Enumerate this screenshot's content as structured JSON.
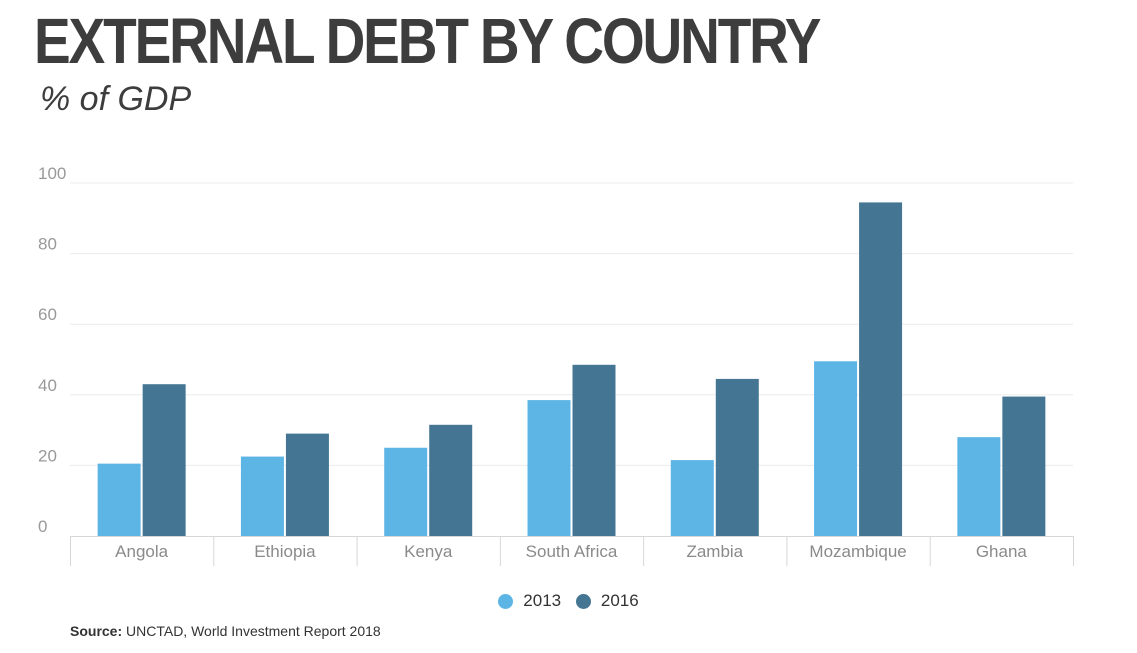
{
  "header": {
    "title": "EXTERNAL DEBT BY COUNTRY",
    "subtitle": "% of GDP"
  },
  "colors": {
    "series_2013": "#5db5e5",
    "series_2016": "#447694",
    "gridline": "#ececec",
    "baseline": "#d6d6d6"
  },
  "chart_data": {
    "type": "bar",
    "categories": [
      "Angola",
      "Ethiopia",
      "Kenya",
      "South Africa",
      "Zambia",
      "Mozambique",
      "Ghana"
    ],
    "series": [
      {
        "name": "2013",
        "values": [
          20.5,
          22.5,
          25,
          38.5,
          21.5,
          49.5,
          28
        ]
      },
      {
        "name": "2016",
        "values": [
          43,
          29,
          31.5,
          48.5,
          44.5,
          94.5,
          39.5
        ]
      }
    ],
    "ylim": [
      0,
      100
    ],
    "yticks": [
      0,
      20,
      40,
      60,
      80,
      100
    ],
    "grid": true,
    "legend_position": "bottom"
  },
  "footer": {
    "source_label": "Source:",
    "source_text": "UNCTAD, World Investment Report 2018"
  }
}
